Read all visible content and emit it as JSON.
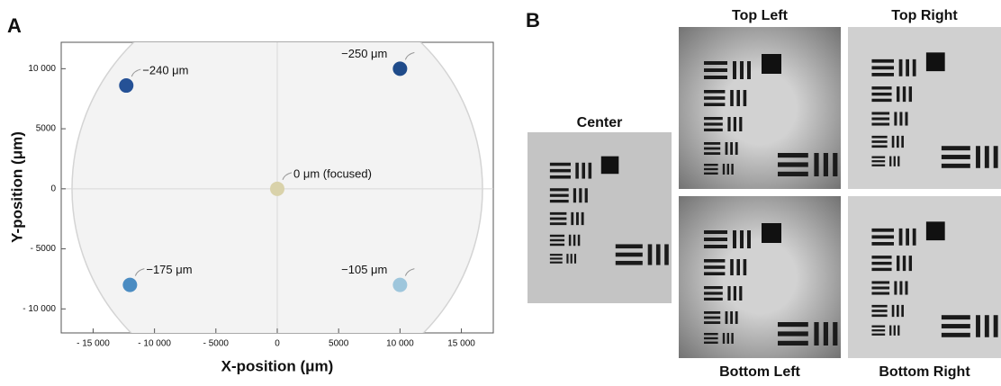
{
  "panel_labels": [
    "A",
    "B"
  ],
  "chart_data": {
    "type": "scatter",
    "x_label": "X-position (μm)",
    "y_label": "Y-position (μm)",
    "x": [
      -12300,
      10000,
      0,
      -12000,
      10000
    ],
    "values": [
      8600,
      10000,
      0,
      -8000,
      -8000
    ],
    "point_labels": [
      "−240 μm",
      "−250 μm",
      "0 μm (focused)",
      "−175 μm",
      "−105 μm"
    ],
    "colors": [
      "#255196",
      "#1f4b8a",
      "#d9d2aa",
      "#4b8cc2",
      "#9ec6dc"
    ],
    "xlim": [
      -17600,
      17600
    ],
    "ylim": [
      -12000,
      12200
    ],
    "xticks": [
      {
        "value": -15000,
        "label": "- 15 000"
      },
      {
        "value": -10000,
        "label": "- 10 000"
      },
      {
        "value": -5000,
        "label": "- 5000"
      },
      0,
      5000,
      {
        "value": 10000,
        "label": "10 000"
      },
      {
        "value": 15000,
        "label": "15 000"
      }
    ],
    "yticks": [
      {
        "value": -10000,
        "label": "- 10 000"
      },
      {
        "value": -5000,
        "label": "- 5000"
      },
      0,
      5000,
      {
        "value": 10000,
        "label": "10 000"
      }
    ],
    "grid": false
  },
  "images": [
    {
      "label": "Center"
    },
    {
      "label": "Top Left"
    },
    {
      "label": "Top Right"
    },
    {
      "label": "Bottom Left"
    },
    {
      "label": "Bottom Right"
    }
  ]
}
